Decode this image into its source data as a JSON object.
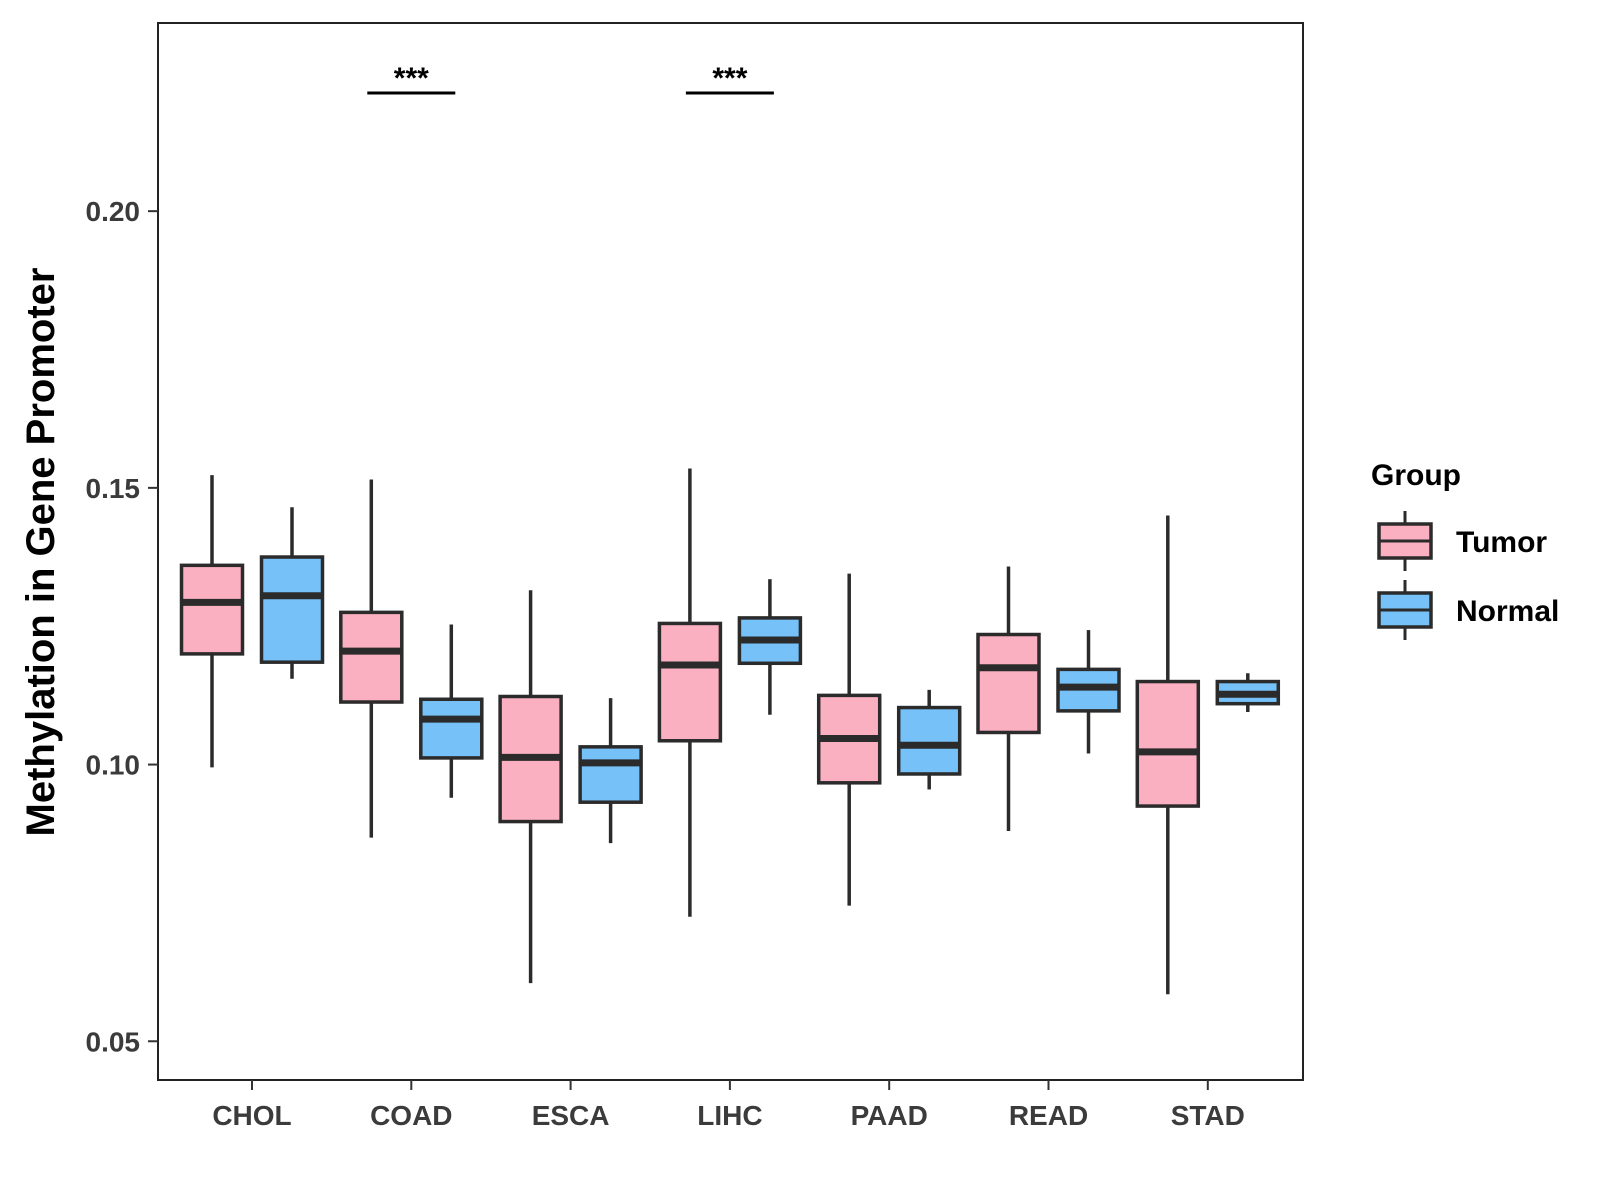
{
  "chart_data": {
    "type": "boxplot",
    "title": "",
    "xlabel": "",
    "ylabel": "Methylation in Gene Promoter",
    "ylim": [
      0.043,
      0.234
    ],
    "yticks": [
      0.05,
      0.1,
      0.15,
      0.2
    ],
    "ytick_labels": [
      "0.05",
      "0.10",
      "0.15",
      "0.20"
    ],
    "grid": false,
    "legend": {
      "title": "Group",
      "position": "right",
      "entries": [
        {
          "name": "Tumor",
          "color": "#FBB0C1"
        },
        {
          "name": "Normal",
          "color": "#75C1F8"
        }
      ]
    },
    "categories": [
      "CHOL",
      "COAD",
      "ESCA",
      "LIHC",
      "PAAD",
      "READ",
      "STAD"
    ],
    "series": [
      {
        "name": "Tumor",
        "color": "#FBB0C1",
        "boxes": [
          {
            "min": 0.0995,
            "q1": 0.12,
            "median": 0.1293,
            "q3": 0.136,
            "max": 0.1523
          },
          {
            "min": 0.0868,
            "q1": 0.1113,
            "median": 0.1205,
            "q3": 0.1275,
            "max": 0.1515
          },
          {
            "min": 0.0605,
            "q1": 0.0897,
            "median": 0.1013,
            "q3": 0.1123,
            "max": 0.1315
          },
          {
            "min": 0.0725,
            "q1": 0.1043,
            "median": 0.118,
            "q3": 0.1255,
            "max": 0.1535
          },
          {
            "min": 0.0745,
            "q1": 0.0967,
            "median": 0.1047,
            "q3": 0.1125,
            "max": 0.1345
          },
          {
            "min": 0.088,
            "q1": 0.1058,
            "median": 0.1175,
            "q3": 0.1235,
            "max": 0.1358
          },
          {
            "min": 0.0585,
            "q1": 0.0925,
            "median": 0.1023,
            "q3": 0.115,
            "max": 0.145
          }
        ]
      },
      {
        "name": "Normal",
        "color": "#75C1F8",
        "boxes": [
          {
            "min": 0.1155,
            "q1": 0.1185,
            "median": 0.1305,
            "q3": 0.1375,
            "max": 0.1465
          },
          {
            "min": 0.094,
            "q1": 0.1012,
            "median": 0.1082,
            "q3": 0.1118,
            "max": 0.1253
          },
          {
            "min": 0.0858,
            "q1": 0.0932,
            "median": 0.1003,
            "q3": 0.1032,
            "max": 0.112
          },
          {
            "min": 0.109,
            "q1": 0.1183,
            "median": 0.1225,
            "q3": 0.1265,
            "max": 0.1335
          },
          {
            "min": 0.0955,
            "q1": 0.0983,
            "median": 0.1035,
            "q3": 0.1103,
            "max": 0.1135
          },
          {
            "min": 0.102,
            "q1": 0.1097,
            "median": 0.114,
            "q3": 0.1172,
            "max": 0.1243
          },
          {
            "min": 0.1095,
            "q1": 0.111,
            "median": 0.1127,
            "q3": 0.115,
            "max": 0.1165
          }
        ]
      }
    ],
    "annotations": [
      {
        "category": "COAD",
        "label": "***"
      },
      {
        "category": "LIHC",
        "label": "***"
      }
    ]
  }
}
